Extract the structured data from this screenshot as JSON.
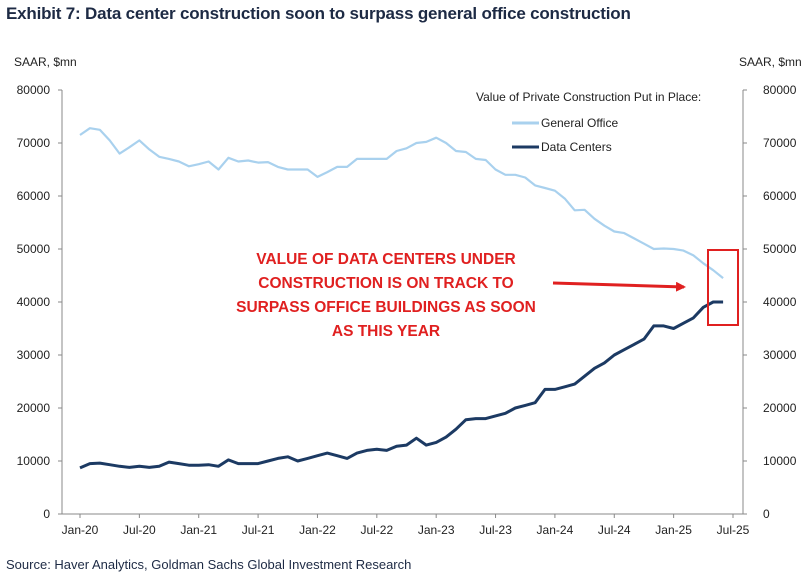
{
  "title": "Exhibit 7: Data center construction soon to surpass general office construction",
  "source": "Source: Haver Analytics, Goldman Sachs Global Investment Research",
  "annotation": "VALUE OF DATA CENTERS UNDER CONSTRUCTION IS ON TRACK TO SURPASS OFFICE BUILDINGS AS SOON AS THIS YEAR",
  "colors": {
    "general_office": "#a9d1ee",
    "data_centers": "#1c3a63",
    "annotation": "#e02020",
    "axis": "#888888"
  },
  "chart_data": {
    "type": "line",
    "title": "Exhibit 7: Data center construction soon to surpass general office construction",
    "ylabel_left": "SAAR, $mn",
    "ylabel_right": "SAAR, $mn",
    "legend_title": "Value of Private Construction Put in Place:",
    "legend_position": "top-right",
    "ylim": [
      0,
      80000
    ],
    "y_ticks": [
      0,
      10000,
      20000,
      30000,
      40000,
      50000,
      60000,
      70000,
      80000
    ],
    "x_ticks": [
      {
        "label": "Jan-20",
        "index": 0
      },
      {
        "label": "Jul-20",
        "index": 6
      },
      {
        "label": "Jan-21",
        "index": 12
      },
      {
        "label": "Jul-21",
        "index": 18
      },
      {
        "label": "Jan-22",
        "index": 24
      },
      {
        "label": "Jul-22",
        "index": 30
      },
      {
        "label": "Jan-23",
        "index": 36
      },
      {
        "label": "Jul-23",
        "index": 42
      },
      {
        "label": "Jan-24",
        "index": 48
      },
      {
        "label": "Jul-24",
        "index": 54
      },
      {
        "label": "Jan-25",
        "index": 60
      },
      {
        "label": "Jul-25",
        "index": 66
      }
    ],
    "x_range": [
      0,
      66
    ],
    "series": [
      {
        "name": "General Office",
        "values": [
          71500,
          72800,
          72500,
          70500,
          68000,
          69200,
          70500,
          68800,
          67400,
          67000,
          66500,
          65600,
          66000,
          66500,
          65000,
          67200,
          66500,
          66700,
          66300,
          66400,
          65500,
          65000,
          65000,
          65000,
          63600,
          64500,
          65500,
          65500,
          67000,
          67000,
          67000,
          67000,
          68500,
          69000,
          70000,
          70200,
          71000,
          70000,
          68500,
          68300,
          67000,
          66800,
          65000,
          64000,
          64000,
          63500,
          62000,
          61500,
          61000,
          59500,
          57300,
          57400,
          55700,
          54400,
          53300,
          53000,
          52000,
          51000,
          50000,
          50100,
          50000,
          49700,
          48800,
          47300,
          46000,
          44500
        ]
      },
      {
        "name": "Data Centers",
        "values": [
          8700,
          9500,
          9600,
          9300,
          9000,
          8800,
          9000,
          8800,
          9000,
          9800,
          9500,
          9200,
          9200,
          9300,
          9000,
          10200,
          9500,
          9500,
          9500,
          10000,
          10500,
          10800,
          10000,
          10500,
          11000,
          11500,
          11000,
          10500,
          11500,
          12000,
          12200,
          12000,
          12800,
          13000,
          14300,
          13000,
          13500,
          14500,
          16000,
          17800,
          18000,
          18000,
          18500,
          19000,
          20000,
          20500,
          21000,
          23500,
          23500,
          24000,
          24500,
          26000,
          27500,
          28500,
          30000,
          31000,
          32000,
          33000,
          35500,
          35500,
          35000,
          36000,
          37000,
          39000,
          40000,
          40000
        ]
      }
    ]
  }
}
